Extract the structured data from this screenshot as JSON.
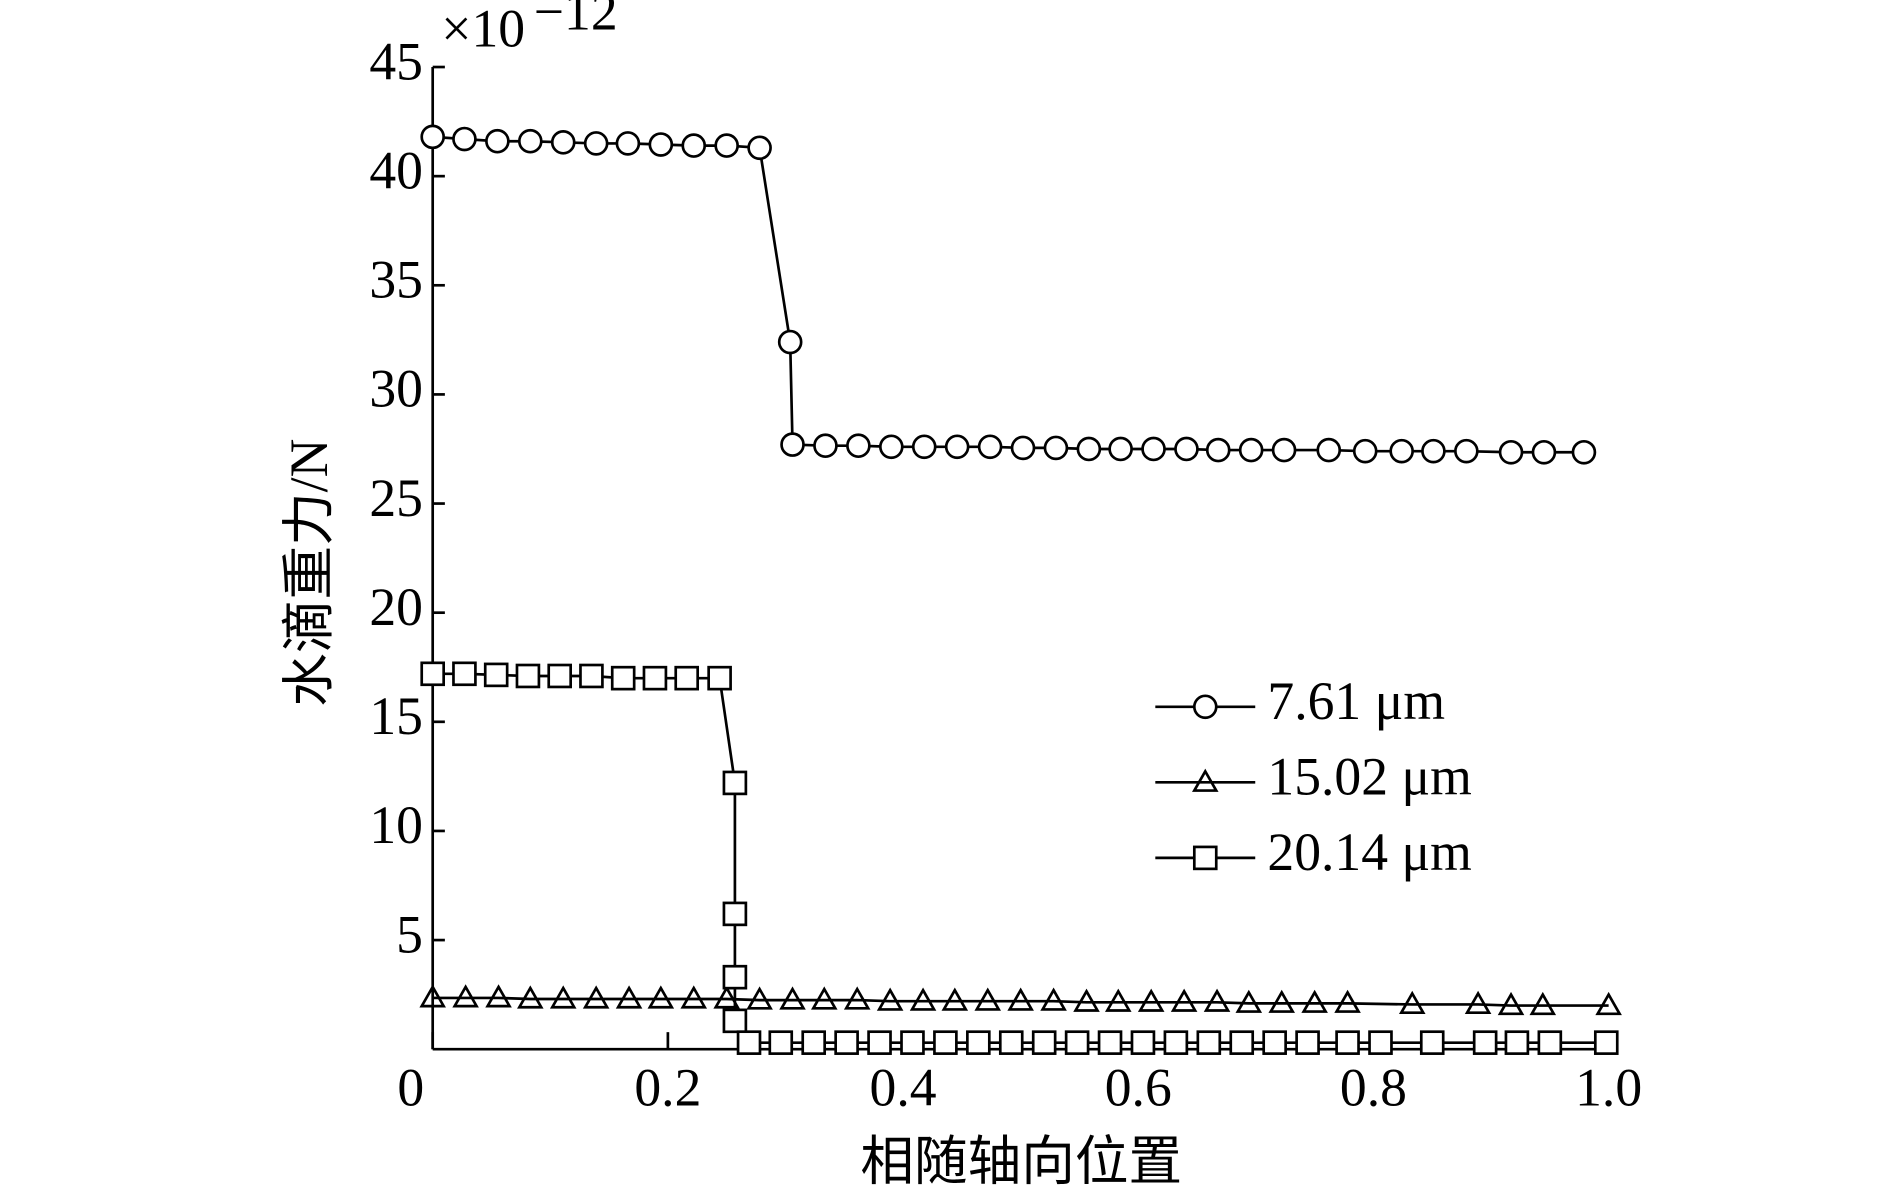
{
  "chart_data": {
    "type": "line",
    "y_multiplier": {
      "base": "×10",
      "exponent": "−12"
    },
    "xlabel": "相随轴向位置",
    "ylabel": "水滴重力/N",
    "xlim": [
      0,
      1
    ],
    "ylim": [
      0,
      45
    ],
    "xticks": [
      0,
      0.2,
      0.4,
      0.6,
      0.8,
      {
        "value": 1,
        "label": "1.0"
      }
    ],
    "yticks": [
      5,
      10,
      15,
      20,
      25,
      30,
      35,
      40,
      45
    ],
    "legend": "right",
    "color": "#000000",
    "series": [
      {
        "name": "7.61 μm",
        "marker": "circle",
        "x": [
          0,
          0.027,
          0.055,
          0.083,
          0.111,
          0.139,
          0.166,
          0.194,
          0.222,
          0.25,
          0.278,
          0.304,
          0.306,
          0.334,
          0.362,
          0.39,
          0.418,
          0.446,
          0.474,
          0.502,
          0.53,
          0.558,
          0.585,
          0.613,
          0.641,
          0.668,
          0.696,
          0.724,
          0.762,
          0.793,
          0.824,
          0.851,
          0.879,
          0.917,
          0.945,
          0.979
        ],
        "values": [
          41.8,
          41.7,
          41.6,
          41.6,
          41.55,
          41.5,
          41.5,
          41.45,
          41.4,
          41.4,
          41.3,
          32.4,
          27.7,
          27.65,
          27.65,
          27.6,
          27.6,
          27.6,
          27.6,
          27.55,
          27.55,
          27.5,
          27.5,
          27.5,
          27.5,
          27.45,
          27.45,
          27.45,
          27.45,
          27.4,
          27.4,
          27.4,
          27.4,
          27.35,
          27.35,
          27.35
        ]
      },
      {
        "name": "15.02 μm",
        "marker": "triangle",
        "x": [
          0,
          0.028,
          0.056,
          0.083,
          0.111,
          0.139,
          0.167,
          0.194,
          0.222,
          0.25,
          0.278,
          0.306,
          0.333,
          0.361,
          0.389,
          0.417,
          0.444,
          0.472,
          0.5,
          0.528,
          0.556,
          0.583,
          0.611,
          0.639,
          0.667,
          0.694,
          0.722,
          0.75,
          0.778,
          0.833,
          0.889,
          0.917,
          0.944,
          1.0
        ],
        "values": [
          2.35,
          2.35,
          2.35,
          2.3,
          2.3,
          2.3,
          2.3,
          2.3,
          2.3,
          2.3,
          2.25,
          2.25,
          2.25,
          2.25,
          2.2,
          2.2,
          2.2,
          2.2,
          2.2,
          2.2,
          2.15,
          2.15,
          2.15,
          2.15,
          2.15,
          2.1,
          2.1,
          2.1,
          2.1,
          2.05,
          2.05,
          2.0,
          2.0,
          2.0
        ]
      },
      {
        "name": "20.14 μm",
        "marker": "square",
        "x": [
          0,
          0.027,
          0.054,
          0.081,
          0.108,
          0.135,
          0.162,
          0.189,
          0.216,
          0.244,
          0.257,
          0.257,
          0.257,
          0.257,
          0.269,
          0.296,
          0.324,
          0.352,
          0.38,
          0.408,
          0.436,
          0.464,
          0.492,
          0.52,
          0.548,
          0.576,
          0.604,
          0.632,
          0.66,
          0.688,
          0.716,
          0.744,
          0.778,
          0.806,
          0.85,
          0.895,
          0.922,
          0.95,
          0.998
        ],
        "values": [
          17.2,
          17.2,
          17.15,
          17.1,
          17.1,
          17.1,
          17.0,
          17.0,
          17.0,
          17.0,
          12.2,
          6.2,
          3.3,
          1.3,
          0.3,
          0.3,
          0.3,
          0.3,
          0.3,
          0.3,
          0.3,
          0.3,
          0.3,
          0.3,
          0.3,
          0.3,
          0.3,
          0.3,
          0.3,
          0.3,
          0.3,
          0.3,
          0.3,
          0.3,
          0.3,
          0.3,
          0.3,
          0.3,
          0.3
        ]
      }
    ]
  }
}
